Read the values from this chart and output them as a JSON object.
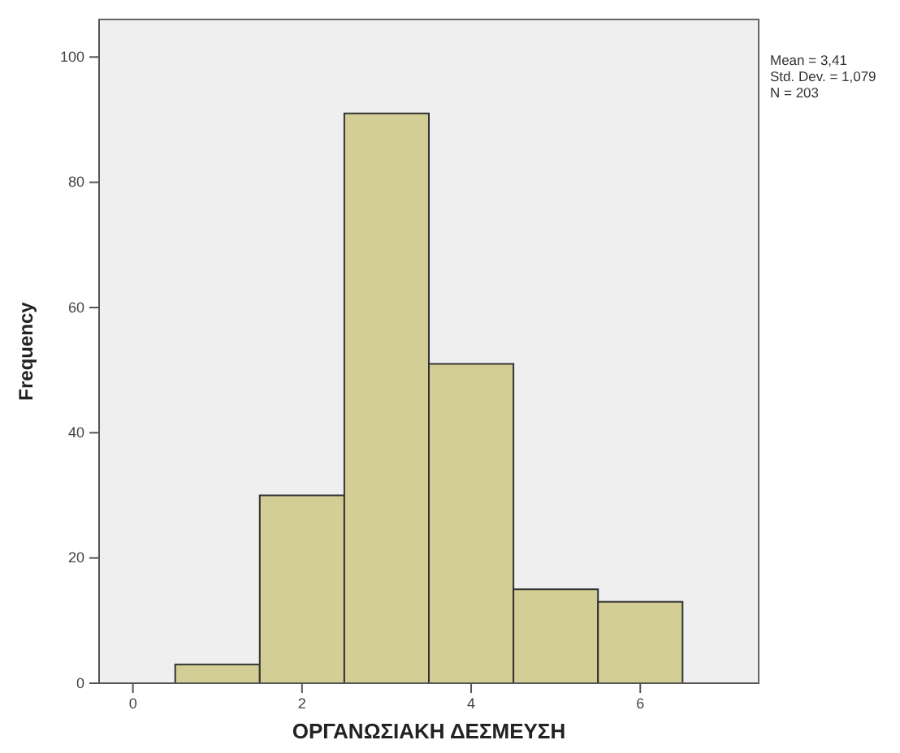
{
  "chart_data": {
    "type": "histogram",
    "xlabel": "ΟΡΓΑΝΩΣΙΑΚΗ ΔΕΣΜΕΥΣΗ",
    "ylabel": "Frequency",
    "bins": [
      0.5,
      1.5,
      2.5,
      3.5,
      4.5,
      5.5,
      6.5
    ],
    "values": [
      3,
      30,
      91,
      51,
      15,
      13
    ],
    "color": "#d3ce96",
    "xlim": [
      -0.4,
      7.4
    ],
    "xticks": [
      0,
      2,
      4,
      6
    ],
    "ylim": [
      0,
      106
    ],
    "yticks": [
      0,
      20,
      40,
      60,
      80,
      100
    ],
    "annotations": [
      "Mean = 3,41",
      "Std. Dev. = 1,079",
      "N = 203"
    ]
  }
}
